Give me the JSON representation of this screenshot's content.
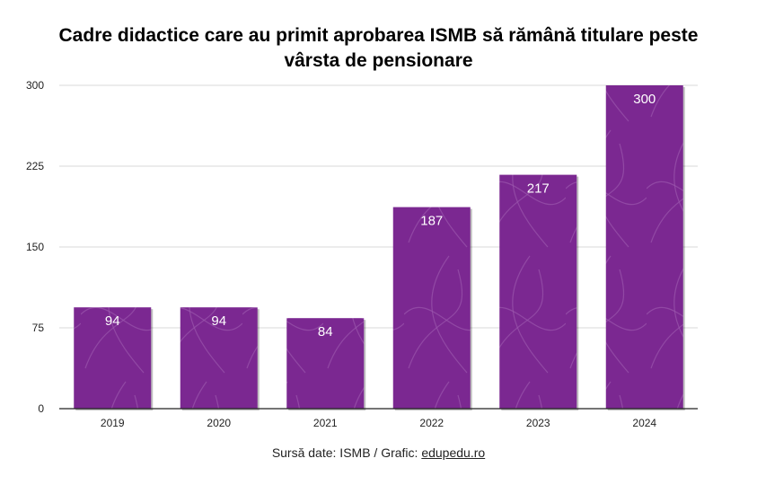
{
  "chart_data": {
    "type": "bar",
    "title": "Cadre didactice care au primit aprobarea ISMB să rămână titulare peste vârsta de pensionare",
    "categories": [
      "2019",
      "2020",
      "2021",
      "2022",
      "2023",
      "2024"
    ],
    "values": [
      94,
      94,
      84,
      187,
      217,
      300
    ],
    "data_labels": [
      "94",
      "94",
      "84",
      "187",
      "217",
      "300"
    ],
    "yticks": [
      0,
      75,
      150,
      225,
      300
    ],
    "ytick_labels": [
      "0",
      "75",
      "150",
      "225",
      "300"
    ],
    "ylim": [
      0,
      300
    ],
    "xlabel": "",
    "ylabel": "",
    "grid": true,
    "legend": "none"
  },
  "colors": {
    "bar": "#7b2891",
    "bar_pattern": "#9a55ad",
    "grid": "#d9d9d9",
    "axis": "#222222",
    "label": "#ffffff"
  },
  "source": {
    "prefix": "Sursă date: ISMB / Grafic: ",
    "link": "edupedu.ro"
  }
}
